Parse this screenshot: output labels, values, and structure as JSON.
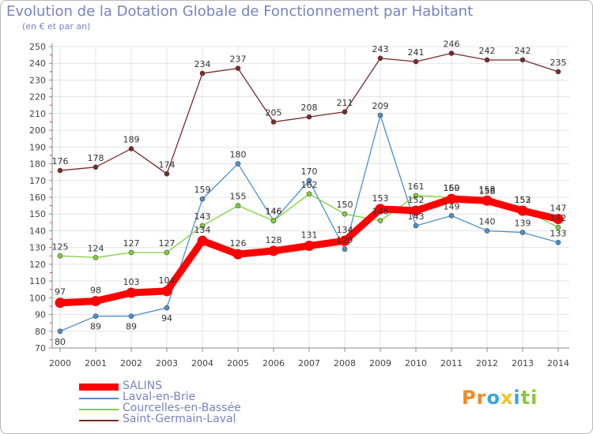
{
  "title": "Evolution de la Dotation Globale de Fonctionnement par Habitant",
  "subtitle": "(en € et par an)",
  "logo": {
    "letters": [
      "P",
      "r",
      "o",
      "x",
      "i",
      "t",
      "i"
    ],
    "colors": [
      "#f08a24",
      "#f08a24",
      "#3aa5dc",
      "#f3c22b",
      "#3aa5dc",
      "#8cc63e",
      "#8cc63e"
    ]
  },
  "chart_data": {
    "type": "line",
    "title": "Evolution de la Dotation Globale de Fonctionnement par Habitant",
    "subtitle": "(en € et par an)",
    "x": [
      2000,
      2001,
      2002,
      2003,
      2004,
      2005,
      2006,
      2007,
      2008,
      2009,
      2010,
      2011,
      2012,
      2013,
      2014
    ],
    "ylim": [
      70,
      250
    ],
    "yticks": [
      70,
      80,
      90,
      100,
      110,
      120,
      130,
      140,
      150,
      160,
      170,
      180,
      190,
      200,
      210,
      220,
      230,
      240,
      250
    ],
    "grid": true,
    "legend_position": "bottom-left",
    "series": [
      {
        "name": "Saint-Germain-Laval",
        "color": "#7a2a2a",
        "values": [
          176,
          178,
          189,
          174,
          234,
          237,
          205,
          208,
          211,
          243,
          241,
          246,
          242,
          242,
          235
        ]
      },
      {
        "name": "Laval-en-Brie",
        "color": "#4d8fcf",
        "values": [
          80,
          89,
          89,
          94,
          159,
          180,
          146,
          170,
          129,
          209,
          143,
          149,
          140,
          139,
          133
        ]
      },
      {
        "name": "Courcelles-en-Bassée",
        "color": "#7fcf3a",
        "values": [
          125,
          124,
          127,
          127,
          143,
          155,
          146,
          162,
          150,
          146,
          161,
          160,
          158,
          153,
          142
        ]
      },
      {
        "name": "SALINS",
        "color": "#ff0000",
        "values": [
          97,
          98,
          103,
          104,
          134,
          126,
          128,
          131,
          134,
          153,
          152,
          159,
          158,
          152,
          147
        ]
      }
    ]
  }
}
